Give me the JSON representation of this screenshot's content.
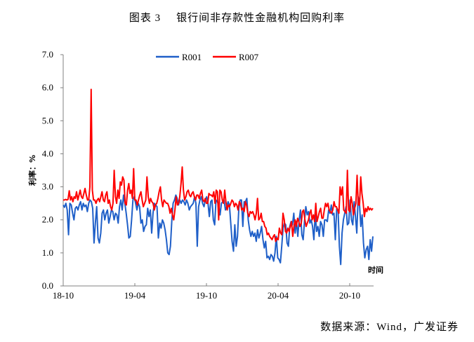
{
  "title": {
    "figure_no": "图表 3",
    "text": "银行间非存款性金融机构回购利率"
  },
  "source": "数据来源：Wind，广发证券",
  "colors": {
    "R001": "#1f5fc8",
    "R007": "#ff0000",
    "axis": "#808080"
  },
  "chart_data": {
    "type": "line",
    "title": "银行间非存款性金融机构回购利率",
    "xlabel": "时间",
    "ylabel": "利率：%",
    "ylim": [
      0,
      7
    ],
    "yticks": [
      "0.0",
      "1.0",
      "2.0",
      "3.0",
      "4.0",
      "5.0",
      "6.0",
      "7.0"
    ],
    "xticks": [
      "18-10",
      "19-04",
      "19-10",
      "20-04",
      "20-10"
    ],
    "grid": false,
    "legend_position": "top",
    "x_range": [
      "2018-10",
      "2021-01"
    ],
    "series": [
      {
        "name": "R001",
        "values": [
          2.45,
          2.38,
          2.5,
          2.3,
          1.55,
          2.5,
          2.45,
          2.2,
          2.0,
          2.35,
          2.4,
          2.3,
          2.45,
          2.55,
          2.3,
          2.5,
          2.4,
          2.45,
          2.25,
          2.5,
          2.6,
          2.55,
          2.35,
          1.3,
          1.9,
          2.4,
          1.45,
          1.3,
          1.6,
          2.2,
          2.3,
          2.0,
          2.2,
          2.3,
          1.9,
          2.1,
          2.3,
          2.25,
          2.0,
          2.2,
          2.15,
          1.9,
          2.4,
          2.6,
          2.3,
          2.75,
          2.5,
          2.2,
          1.85,
          1.45,
          1.5,
          2.0,
          2.6,
          2.7,
          2.5,
          2.3,
          2.5,
          2.4,
          1.9,
          2.0,
          1.65,
          1.8,
          1.85,
          2.35,
          2.1,
          2.3,
          1.6,
          2.2,
          2.5,
          2.45,
          2.4,
          1.45,
          1.9,
          1.75,
          2.0,
          1.9,
          1.7,
          1.4,
          1.0,
          0.95,
          1.2,
          1.95,
          2.5,
          2.6,
          2.75,
          2.65,
          2.45,
          2.6,
          2.5,
          2.6,
          2.55,
          2.45,
          2.6,
          2.5,
          2.3,
          2.4,
          2.45,
          2.5,
          2.7,
          2.5,
          1.2,
          2.4,
          2.6,
          2.7,
          2.5,
          2.4,
          2.6,
          2.7,
          2.5,
          2.1,
          2.55,
          2.6,
          2.0,
          1.85,
          2.6,
          2.55,
          2.45,
          2.15,
          2.5,
          2.55,
          2.6,
          2.3,
          2.4,
          2.55,
          2.45,
          1.9,
          1.35,
          1.05,
          1.85,
          1.2,
          1.5,
          2.35,
          2.6,
          2.6,
          1.8,
          2.55,
          2.55,
          2.65,
          2.0,
          1.7,
          1.5,
          1.65,
          1.5,
          1.6,
          1.35,
          1.7,
          1.45,
          1.6,
          1.8,
          1.4,
          1.15,
          1.35,
          0.85,
          0.9,
          0.8,
          0.95,
          0.9,
          0.75,
          1.0,
          1.5,
          0.85,
          0.8,
          0.7,
          1.2,
          1.75,
          1.9,
          1.85,
          1.3,
          1.2,
          1.8,
          1.95,
          1.85,
          2.2,
          1.6,
          1.95,
          1.5,
          2.0,
          2.3,
          1.55,
          1.4,
          1.95,
          2.4,
          2.15,
          2.25,
          1.9,
          2.0,
          1.8,
          1.4,
          2.2,
          1.65,
          1.8,
          1.5,
          1.95,
          1.85,
          1.5,
          2.0,
          2.0,
          1.95,
          2.3,
          2.2,
          2.45,
          2.15,
          2.2,
          1.4,
          2.35,
          2.3,
          1.2,
          0.65,
          1.6,
          2.0,
          2.2,
          2.4,
          1.85,
          1.9,
          2.6,
          2.0,
          1.85,
          2.55,
          2.1,
          1.6,
          2.7,
          2.5,
          1.8,
          2.15,
          1.3,
          0.85,
          1.1,
          1.2,
          0.8,
          1.4,
          1.05,
          1.5
        ]
      },
      {
        "name": "R007",
        "values": [
          2.6,
          2.6,
          2.62,
          2.6,
          2.62,
          2.88,
          2.6,
          2.7,
          2.55,
          2.7,
          2.65,
          2.85,
          2.6,
          2.75,
          2.9,
          2.7,
          2.65,
          2.8,
          2.95,
          2.75,
          2.6,
          2.6,
          3.0,
          5.95,
          2.9,
          2.6,
          2.6,
          2.5,
          2.6,
          2.65,
          2.55,
          2.7,
          2.85,
          2.6,
          2.55,
          2.75,
          2.85,
          2.5,
          2.6,
          2.4,
          2.3,
          2.5,
          3.5,
          2.7,
          2.5,
          2.9,
          2.65,
          3.15,
          3.05,
          3.3,
          3.2,
          2.5,
          2.45,
          2.9,
          3.1,
          2.8,
          2.9,
          2.65,
          3.55,
          2.6,
          2.6,
          2.45,
          2.6,
          2.75,
          2.85,
          2.6,
          2.4,
          2.5,
          2.6,
          3.3,
          2.7,
          2.5,
          2.65,
          2.55,
          2.5,
          2.3,
          2.45,
          2.5,
          2.65,
          2.85,
          3.0,
          2.6,
          2.4,
          2.6,
          2.55,
          2.5,
          2.5,
          2.4,
          2.2,
          2.35,
          2.15,
          2.0,
          2.3,
          2.7,
          2.45,
          2.5,
          2.7,
          3.1,
          3.6,
          2.9,
          2.6,
          2.7,
          2.85,
          2.9,
          2.75,
          2.7,
          2.8,
          2.85,
          2.7,
          2.6,
          2.75,
          2.75,
          2.65,
          2.8,
          2.9,
          2.6,
          2.55,
          2.65,
          2.5,
          2.5,
          2.8,
          2.75,
          2.75,
          2.7,
          2.85,
          2.5,
          2.9,
          2.85,
          2.0,
          2.9,
          2.85,
          2.6,
          2.5,
          2.9,
          2.55,
          2.3,
          2.45,
          2.4,
          2.5,
          2.6,
          2.55,
          2.4,
          2.5,
          2.45,
          2.3,
          2.55,
          2.5,
          2.3,
          2.35,
          2.25,
          2.55,
          2.45,
          2.2,
          2.1,
          2.25,
          2.2,
          2.25,
          2.15,
          2.0,
          2.2,
          2.65,
          2.0,
          2.05,
          2.2,
          1.95,
          1.95,
          1.8,
          1.75,
          1.55,
          1.6,
          1.5,
          1.45,
          1.4,
          1.5,
          1.55,
          1.35,
          1.45,
          1.4,
          1.75,
          1.6,
          1.55,
          2.2,
          2.0,
          1.65,
          1.6,
          1.75,
          1.65,
          1.8,
          1.95,
          1.5,
          1.8,
          2.0,
          1.8,
          2.05,
          1.95,
          1.8,
          1.9,
          2.25,
          2.3,
          2.0,
          1.8,
          1.9,
          2.0,
          2.2,
          2.3,
          2.0,
          2.15,
          1.95,
          2.5,
          1.95,
          2.1,
          2.25,
          2.35,
          2.05,
          2.05,
          2.3,
          2.5,
          2.4,
          2.5,
          2.3,
          2.25,
          2.2,
          2.3,
          2.55,
          2.4,
          2.4,
          2.3,
          2.2,
          3.0,
          2.75,
          3.0,
          2.3,
          2.25,
          2.2,
          3.5,
          2.3,
          2.25,
          2.7,
          2.5,
          2.15,
          2.35,
          2.5,
          3.35,
          2.45,
          2.45,
          3.3,
          2.8,
          2.5,
          2.1,
          2.35,
          2.25,
          2.4,
          2.3,
          2.35,
          2.3,
          2.35
        ]
      }
    ]
  },
  "legend": {
    "items": [
      {
        "label": "R001"
      },
      {
        "label": "R007"
      }
    ]
  },
  "axis": {
    "ylabel": "利率：%",
    "xlabel": "时间",
    "yticks": [
      "0.0",
      "1.0",
      "2.0",
      "3.0",
      "4.0",
      "5.0",
      "6.0",
      "7.0"
    ],
    "xticks": [
      "18-10",
      "19-04",
      "19-10",
      "20-04",
      "20-10"
    ]
  }
}
